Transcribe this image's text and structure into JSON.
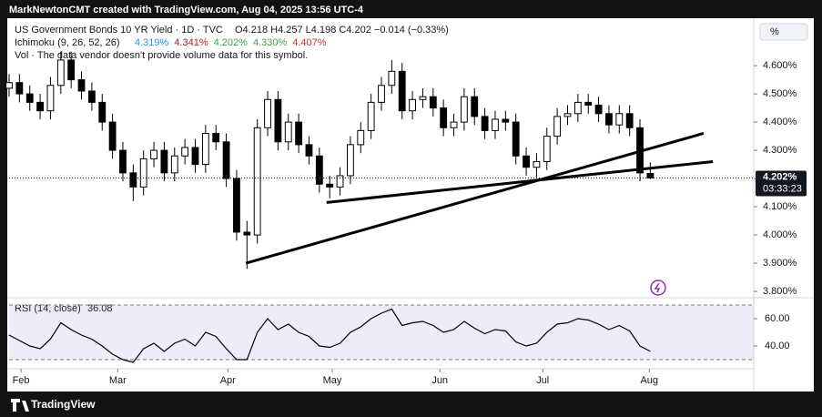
{
  "chart_data": {
    "type": "candlestick",
    "credit": "MarkNewtonCMT created with TradingView.com, Aug 04, 2025 13:56 UTC-4",
    "title": "US Government Bonds 10 YR Yield · 1D · TVC",
    "ohlc_text": "O4.218 H4.257 L4.198 C4.202 −0.014 (−0.33%)",
    "indicator_title": "Ichimoku (9, 26, 52, 26)",
    "indicator_values": [
      {
        "text": "4.319%",
        "color": "#2196f3"
      },
      {
        "text": "4.341%",
        "color": "#b71c1c"
      },
      {
        "text": "4.202%",
        "color": "#43a047"
      },
      {
        "text": "4.330%",
        "color": "#43a047"
      },
      {
        "text": "4.407%",
        "color": "#d32f2f"
      }
    ],
    "volume_note": "Vol · The data vendor doesn't provide volume data for this symbol.",
    "scale_button": "%",
    "brand": "TradingView",
    "x": [
      0,
      2,
      4,
      6,
      8,
      10,
      12,
      14,
      16,
      18,
      20,
      22,
      24,
      26,
      28,
      30,
      32,
      34,
      36,
      38,
      40,
      42,
      44,
      46,
      48,
      50,
      52,
      54,
      56,
      58,
      60,
      62,
      64,
      66,
      68,
      70,
      72,
      74,
      76,
      78,
      80,
      82,
      84,
      86,
      88,
      90,
      92,
      94,
      96,
      98,
      100,
      102,
      104,
      106,
      108,
      110,
      112,
      114,
      116,
      118,
      120,
      122,
      124
    ],
    "open": [
      4.52,
      4.54,
      4.5,
      4.47,
      4.44,
      4.53,
      4.62,
      4.55,
      4.51,
      4.47,
      4.4,
      4.3,
      4.22,
      4.17,
      4.27,
      4.3,
      4.22,
      4.28,
      4.31,
      4.25,
      4.36,
      4.33,
      4.2,
      4.01,
      4.0,
      4.38,
      4.48,
      4.33,
      4.4,
      4.32,
      4.28,
      4.18,
      4.17,
      4.21,
      4.32,
      4.37,
      4.47,
      4.53,
      4.58,
      4.44,
      4.48,
      4.49,
      4.45,
      4.38,
      4.4,
      4.49,
      4.42,
      4.37,
      4.41,
      4.4,
      4.28,
      4.24,
      4.26,
      4.35,
      4.42,
      4.43,
      4.47,
      4.46,
      4.43,
      4.39,
      4.43,
      4.38,
      4.218
    ],
    "high": [
      4.57,
      4.57,
      4.53,
      4.5,
      4.56,
      4.65,
      4.65,
      4.58,
      4.54,
      4.5,
      4.43,
      4.33,
      4.25,
      4.3,
      4.33,
      4.33,
      4.31,
      4.34,
      4.34,
      4.39,
      4.39,
      4.36,
      4.23,
      4.05,
      4.41,
      4.51,
      4.51,
      4.43,
      4.43,
      4.35,
      4.31,
      4.21,
      4.24,
      4.35,
      4.4,
      4.5,
      4.56,
      4.62,
      4.61,
      4.51,
      4.52,
      4.52,
      4.48,
      4.43,
      4.52,
      4.52,
      4.45,
      4.44,
      4.44,
      4.43,
      4.31,
      4.29,
      4.38,
      4.45,
      4.46,
      4.5,
      4.5,
      4.49,
      4.46,
      4.46,
      4.46,
      4.41,
      4.257
    ],
    "low": [
      4.49,
      4.47,
      4.44,
      4.41,
      4.41,
      4.5,
      4.52,
      4.48,
      4.44,
      4.37,
      4.27,
      4.19,
      4.12,
      4.14,
      4.24,
      4.19,
      4.19,
      4.25,
      4.22,
      4.22,
      4.3,
      4.17,
      3.98,
      3.88,
      3.97,
      4.35,
      4.3,
      4.3,
      4.29,
      4.25,
      4.15,
      4.13,
      4.14,
      4.18,
      4.29,
      4.34,
      4.44,
      4.5,
      4.41,
      4.41,
      4.45,
      4.42,
      4.35,
      4.35,
      4.37,
      4.39,
      4.34,
      4.34,
      4.37,
      4.25,
      4.21,
      4.2,
      4.23,
      4.32,
      4.39,
      4.4,
      4.43,
      4.4,
      4.36,
      4.36,
      4.35,
      4.19,
      4.198
    ],
    "close": [
      4.54,
      4.5,
      4.47,
      4.44,
      4.53,
      4.62,
      4.55,
      4.51,
      4.47,
      4.4,
      4.3,
      4.22,
      4.17,
      4.27,
      4.3,
      4.22,
      4.28,
      4.31,
      4.25,
      4.36,
      4.33,
      4.2,
      4.01,
      4.0,
      4.38,
      4.48,
      4.33,
      4.4,
      4.32,
      4.28,
      4.18,
      4.17,
      4.21,
      4.32,
      4.37,
      4.47,
      4.53,
      4.58,
      4.44,
      4.48,
      4.49,
      4.45,
      4.38,
      4.4,
      4.49,
      4.42,
      4.37,
      4.41,
      4.4,
      4.28,
      4.24,
      4.26,
      4.35,
      4.42,
      4.43,
      4.47,
      4.46,
      4.43,
      4.39,
      4.43,
      4.38,
      4.22,
      4.202
    ],
    "up_color": "#ffffff",
    "down_color": "#000000",
    "xlim": [
      0,
      144
    ],
    "xticks": [
      {
        "value": 2.3,
        "label": "Feb"
      },
      {
        "value": 21,
        "label": "Mar"
      },
      {
        "value": 42.3,
        "label": "Apr"
      },
      {
        "value": 62.5,
        "label": "May"
      },
      {
        "value": 83.3,
        "label": "Jun"
      },
      {
        "value": 103.2,
        "label": "Jul"
      },
      {
        "value": 123.8,
        "label": "Aug"
      }
    ],
    "ylim": [
      3.784,
      4.752
    ],
    "yticks": [
      {
        "value": 3.8,
        "label": "3.800%"
      },
      {
        "value": 3.9,
        "label": "3.900%"
      },
      {
        "value": 4.0,
        "label": "4.000%"
      },
      {
        "value": 4.1,
        "label": "4.100%"
      },
      {
        "value": 4.2,
        "label": "4.200%"
      },
      {
        "value": 4.3,
        "label": "4.300%"
      },
      {
        "value": 4.4,
        "label": "4.400%"
      },
      {
        "value": 4.5,
        "label": "4.500%"
      },
      {
        "value": 4.6,
        "label": "4.600%"
      }
    ],
    "last_price": {
      "value": 4.202,
      "label": "4.202%",
      "countdown": "03:33:23"
    },
    "trendlines": [
      {
        "x": [
          45.8,
          134.3
        ],
        "y": [
          3.9,
          4.36
        ]
      },
      {
        "x": [
          61.4,
          136.1
        ],
        "y": [
          4.115,
          4.26
        ]
      }
    ],
    "rsi": {
      "title": "RSI (14, close)",
      "value_label": "36.08",
      "color": "#000000",
      "values": [
        48,
        44,
        40,
        38,
        45,
        57,
        52,
        48,
        45,
        40,
        34,
        30,
        28,
        38,
        42,
        36,
        42,
        45,
        40,
        50,
        47,
        38,
        30,
        30,
        50,
        60,
        52,
        56,
        50,
        47,
        40,
        39,
        42,
        50,
        54,
        60,
        64,
        67,
        55,
        57,
        58,
        55,
        50,
        52,
        58,
        53,
        49,
        52,
        51,
        43,
        40,
        42,
        50,
        56,
        57,
        60,
        59,
        56,
        52,
        55,
        51,
        40,
        36.08
      ],
      "ylim": [
        26.7,
        71.3
      ],
      "band": [
        30,
        70
      ],
      "yticks": [
        {
          "value": 40,
          "label": "40.00"
        },
        {
          "value": 60,
          "label": "60.00"
        }
      ]
    }
  }
}
